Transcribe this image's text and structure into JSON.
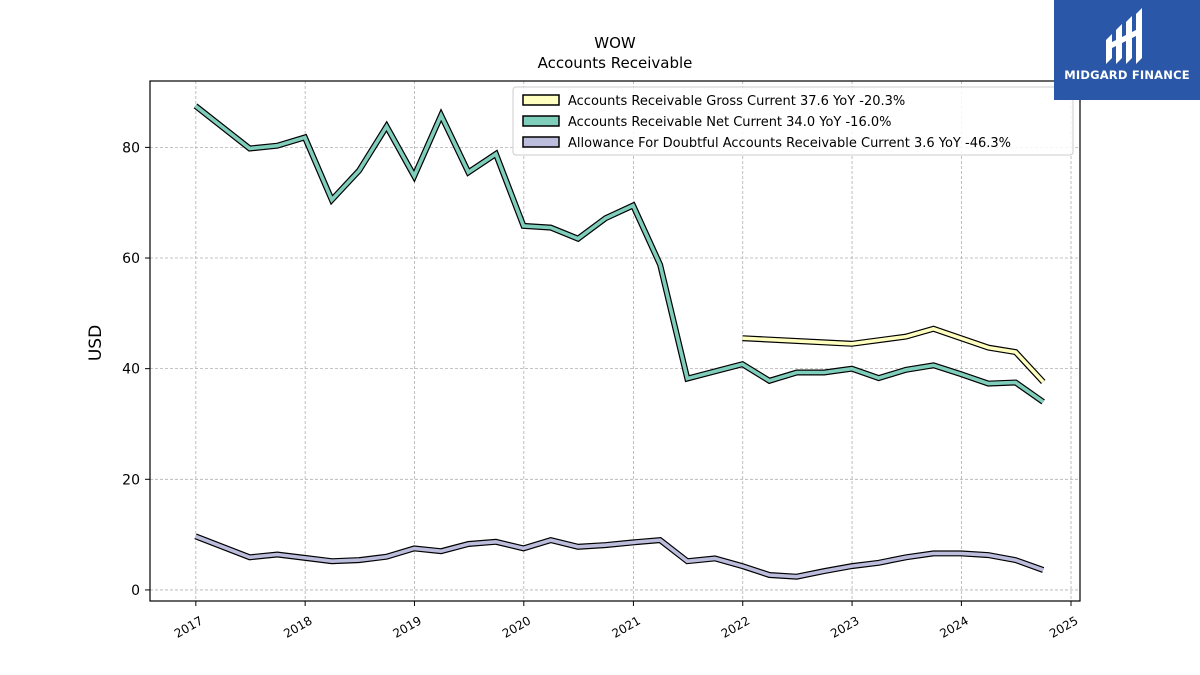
{
  "brand": {
    "name": "MIDGARD FINANCE",
    "bg_color": "#2b57a8"
  },
  "chart_data": {
    "type": "line",
    "title": "WOW",
    "subtitle": "Accounts Receivable",
    "ylabel": "USD",
    "xlabel": "",
    "xlim": [
      "2016-08-01",
      "2025-01-31"
    ],
    "ylim": [
      -2,
      92
    ],
    "yticks": [
      0,
      20,
      40,
      60,
      80
    ],
    "xticks": [
      "2017",
      "2018",
      "2019",
      "2020",
      "2021",
      "2022",
      "2023",
      "2024",
      "2025"
    ],
    "grid": true,
    "legend_position": "top-right",
    "series": [
      {
        "name": "Accounts Receivable Gross Current  37.6 YoY -20.3%",
        "color": "#ffffbf",
        "points": [
          [
            "2021-12-31",
            45.5
          ],
          [
            "2022-12-31",
            44.5
          ],
          [
            "2023-06-30",
            45.8
          ],
          [
            "2023-09-30",
            47.2
          ],
          [
            "2024-03-31",
            43.8
          ],
          [
            "2024-06-30",
            43.0
          ],
          [
            "2024-09-30",
            37.6
          ]
        ]
      },
      {
        "name": "Accounts Receivable Net Current  34.0 YoY -16.0%",
        "color": "#7fcdbb",
        "points": [
          [
            "2016-12-31",
            87.5
          ],
          [
            "2017-06-30",
            79.8
          ],
          [
            "2017-09-30",
            80.3
          ],
          [
            "2017-12-31",
            81.8
          ],
          [
            "2018-03-31",
            70.5
          ],
          [
            "2018-06-30",
            75.8
          ],
          [
            "2018-09-30",
            83.8
          ],
          [
            "2018-12-31",
            74.8
          ],
          [
            "2019-03-31",
            85.8
          ],
          [
            "2019-06-30",
            75.5
          ],
          [
            "2019-09-30",
            78.8
          ],
          [
            "2019-12-31",
            65.8
          ],
          [
            "2020-03-31",
            65.5
          ],
          [
            "2020-06-30",
            63.5
          ],
          [
            "2020-09-30",
            67.2
          ],
          [
            "2020-12-31",
            69.5
          ],
          [
            "2021-03-31",
            58.8
          ],
          [
            "2021-06-30",
            38.2
          ],
          [
            "2021-09-30",
            39.5
          ],
          [
            "2021-12-31",
            40.8
          ],
          [
            "2022-03-31",
            37.8
          ],
          [
            "2022-06-30",
            39.3
          ],
          [
            "2022-09-30",
            39.3
          ],
          [
            "2022-12-31",
            40.0
          ],
          [
            "2023-03-31",
            38.3
          ],
          [
            "2023-06-30",
            39.8
          ],
          [
            "2023-09-30",
            40.6
          ],
          [
            "2023-12-31",
            39.0
          ],
          [
            "2024-03-31",
            37.3
          ],
          [
            "2024-06-30",
            37.5
          ],
          [
            "2024-09-30",
            34.0
          ]
        ]
      },
      {
        "name": "Allowance For Doubtful Accounts Receivable Current  3.6 YoY -46.3%",
        "color": "#bcbddc",
        "points": [
          [
            "2016-12-31",
            9.7
          ],
          [
            "2017-06-30",
            5.9
          ],
          [
            "2017-09-30",
            6.4
          ],
          [
            "2017-12-31",
            5.8
          ],
          [
            "2018-03-31",
            5.2
          ],
          [
            "2018-06-30",
            5.4
          ],
          [
            "2018-09-30",
            6.0
          ],
          [
            "2018-12-31",
            7.5
          ],
          [
            "2019-03-31",
            7.0
          ],
          [
            "2019-06-30",
            8.3
          ],
          [
            "2019-09-30",
            8.7
          ],
          [
            "2019-12-31",
            7.5
          ],
          [
            "2020-03-31",
            9.0
          ],
          [
            "2020-06-30",
            7.8
          ],
          [
            "2020-09-30",
            8.1
          ],
          [
            "2020-12-31",
            8.6
          ],
          [
            "2021-03-31",
            9.0
          ],
          [
            "2021-06-30",
            5.2
          ],
          [
            "2021-09-30",
            5.7
          ],
          [
            "2021-12-31",
            4.3
          ],
          [
            "2022-03-31",
            2.7
          ],
          [
            "2022-06-30",
            2.4
          ],
          [
            "2022-09-30",
            3.4
          ],
          [
            "2022-12-31",
            4.3
          ],
          [
            "2023-03-31",
            4.9
          ],
          [
            "2023-06-30",
            5.9
          ],
          [
            "2023-09-30",
            6.6
          ],
          [
            "2023-12-31",
            6.6
          ],
          [
            "2024-03-31",
            6.3
          ],
          [
            "2024-06-30",
            5.4
          ],
          [
            "2024-09-30",
            3.6
          ]
        ]
      }
    ]
  }
}
